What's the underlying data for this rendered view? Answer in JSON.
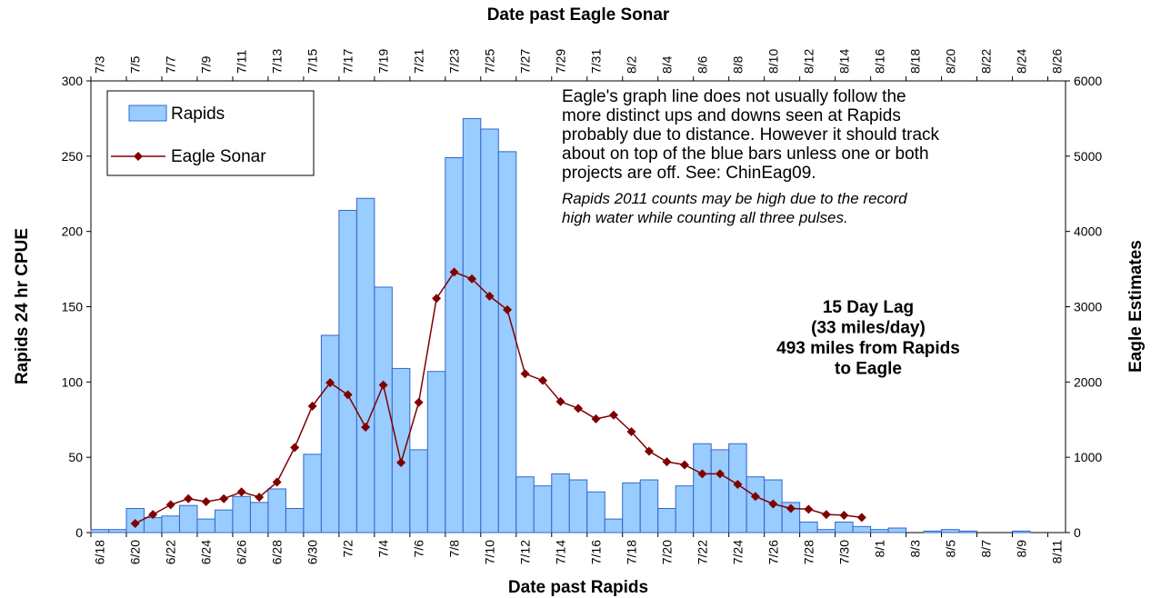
{
  "chart_data": {
    "type": "bar",
    "title": "Date past Eagle Sonar",
    "x_label": "Date past Rapids",
    "y_label": "Rapids 24 hr CPUE",
    "y2_label": "Eagle Estimates",
    "categories": [
      "6/18",
      null,
      "6/20",
      null,
      "6/22",
      null,
      "6/24",
      null,
      "6/26",
      null,
      "6/28",
      null,
      "6/30",
      null,
      "7/2",
      null,
      "7/4",
      null,
      "7/6",
      null,
      "7/8",
      null,
      "7/10",
      null,
      "7/12",
      null,
      "7/14",
      null,
      "7/16",
      null,
      "7/18",
      null,
      "7/20",
      null,
      "7/22",
      null,
      "7/24",
      null,
      "7/26",
      null,
      "7/28",
      null,
      "7/30",
      null,
      "8/1",
      null,
      "8/3",
      null,
      "8/5",
      null,
      "8/7",
      null,
      "8/9",
      null,
      "8/11"
    ],
    "x2_categories": [
      "7/3",
      null,
      "7/5",
      null,
      "7/7",
      null,
      "7/9",
      null,
      "7/11",
      null,
      "7/13",
      null,
      "7/15",
      null,
      "7/17",
      null,
      "7/19",
      null,
      "7/21",
      null,
      "7/23",
      null,
      "7/25",
      null,
      "7/27",
      null,
      "7/29",
      null,
      "7/31",
      null,
      "8/2",
      null,
      "8/4",
      null,
      "8/6",
      null,
      "8/8",
      null,
      "8/10",
      null,
      "8/12",
      null,
      "8/14",
      null,
      "8/16",
      null,
      "8/18",
      null,
      "8/20",
      null,
      "8/22",
      null,
      "8/24",
      null,
      "8/26"
    ],
    "series": [
      {
        "name": "Rapids",
        "type": "bar",
        "color": "#99ccff",
        "edge": "#3366cc",
        "values": [
          2,
          2,
          16,
          10,
          11,
          18,
          9,
          15,
          24,
          20,
          29,
          16,
          52,
          131,
          214,
          222,
          163,
          109,
          55,
          107,
          249,
          275,
          268,
          253,
          37,
          31,
          39,
          35,
          27,
          9,
          33,
          35,
          16,
          31,
          59,
          55,
          59,
          37,
          35,
          20,
          7,
          2,
          7,
          4,
          2,
          3,
          0,
          1,
          2,
          1,
          0,
          0,
          1,
          0,
          0
        ]
      },
      {
        "name": "Eagle Sonar",
        "type": "line",
        "axis": "y2",
        "color": "#800000",
        "values": [
          null,
          null,
          120,
          240,
          370,
          450,
          410,
          450,
          540,
          470,
          670,
          1130,
          1680,
          1990,
          1830,
          1400,
          1960,
          930,
          1730,
          3110,
          3460,
          3370,
          3140,
          2960,
          2110,
          2020,
          1740,
          1650,
          1510,
          1560,
          1340,
          1080,
          940,
          900,
          780,
          780,
          640,
          480,
          380,
          320,
          310,
          240,
          230,
          200,
          null,
          null,
          null,
          null,
          null,
          null,
          null,
          null,
          null,
          null,
          null
        ]
      }
    ],
    "ylim": [
      0,
      300
    ],
    "yticks": [
      0,
      50,
      100,
      150,
      200,
      250,
      300
    ],
    "y2lim": [
      0,
      6000
    ],
    "y2ticks": [
      0,
      1000,
      2000,
      3000,
      4000,
      5000,
      6000
    ],
    "grid": false,
    "legend": "upper left",
    "annotations": [
      "Eagle's graph line does not usually follow the",
      "more distinct ups and downs seen at Rapids",
      "probably due to distance.  However it should track",
      "about on top of the blue bars unless  one or both",
      "projects are off.  See: ChinEag09."
    ],
    "notes": [
      "Rapids 2011 counts may be high due to the record",
      "high water while counting all three pulses."
    ],
    "lag_note": [
      "15 Day Lag",
      "(33 miles/day)",
      "493 miles from Rapids",
      "to Eagle"
    ]
  }
}
